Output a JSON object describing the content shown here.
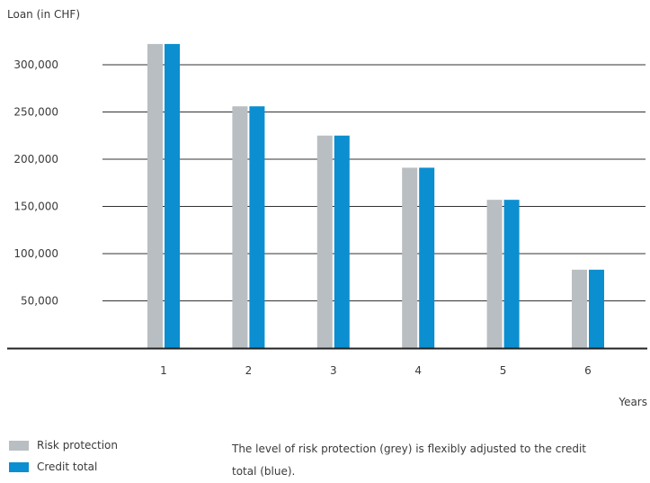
{
  "chart_data": {
    "type": "bar",
    "ylabel": "Loan (in CHF)",
    "xlabel": "Years",
    "categories": [
      "1",
      "2",
      "3",
      "4",
      "5",
      "6"
    ],
    "series": [
      {
        "name": "Risk protection",
        "color": "#b9bec2",
        "values": [
          322000,
          256000,
          225000,
          191000,
          157000,
          83000
        ]
      },
      {
        "name": "Credit total",
        "color": "#0b8fd0",
        "values": [
          322000,
          256000,
          225000,
          191000,
          157000,
          83000
        ]
      }
    ],
    "yticks": [
      "50,000",
      "100,000",
      "150,000",
      "200,000",
      "250,000",
      "300,000"
    ],
    "ylim": [
      0,
      350000
    ],
    "grid": true
  },
  "note": "The level of risk protection (grey) is flexibly adjusted to the credit total (blue)."
}
